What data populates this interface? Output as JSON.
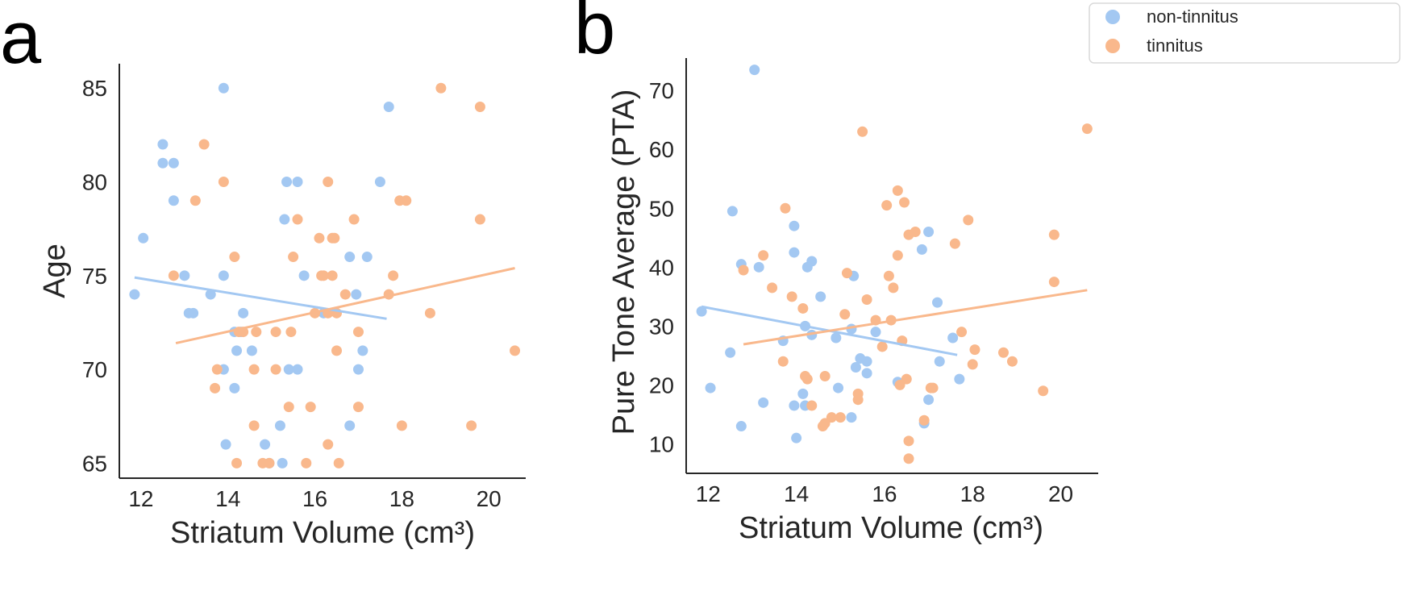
{
  "colors": {
    "non_tinnitus": "#a3c8f2",
    "tinnitus": "#f9b88c",
    "axis": "#262626"
  },
  "legend": {
    "items": [
      {
        "label": "non-tinnitus",
        "color": "#a3c8f2"
      },
      {
        "label": "tinnitus",
        "color": "#f9b88c"
      }
    ],
    "placement": "top-right"
  },
  "chart_data": [
    {
      "panel": "a",
      "type": "scatter",
      "xlabel": "Striatum Volume (cm³)",
      "ylabel": "Age",
      "xlim": [
        11.5,
        20.85
      ],
      "ylim": [
        64.2,
        86.3
      ],
      "xticks": [
        12,
        14,
        16,
        18,
        20
      ],
      "yticks": [
        65,
        70,
        75,
        80,
        85
      ],
      "series": [
        {
          "name": "non-tinnitus",
          "points": [
            [
              11.85,
              74
            ],
            [
              12.05,
              77
            ],
            [
              12.5,
              82
            ],
            [
              12.5,
              81
            ],
            [
              12.75,
              81
            ],
            [
              12.75,
              79
            ],
            [
              13.0,
              75
            ],
            [
              13.1,
              73
            ],
            [
              13.2,
              73
            ],
            [
              13.6,
              74
            ],
            [
              13.9,
              85
            ],
            [
              13.9,
              75
            ],
            [
              13.9,
              70
            ],
            [
              13.95,
              66
            ],
            [
              14.15,
              72
            ],
            [
              14.2,
              71
            ],
            [
              14.15,
              69
            ],
            [
              14.3,
              72
            ],
            [
              14.35,
              73
            ],
            [
              14.55,
              71
            ],
            [
              14.85,
              66
            ],
            [
              14.95,
              65
            ],
            [
              15.2,
              67
            ],
            [
              15.25,
              65
            ],
            [
              15.3,
              78
            ],
            [
              15.35,
              80
            ],
            [
              15.4,
              70
            ],
            [
              15.6,
              80
            ],
            [
              15.6,
              70
            ],
            [
              15.75,
              75
            ],
            [
              16.2,
              73
            ],
            [
              16.8,
              67
            ],
            [
              16.8,
              76
            ],
            [
              16.95,
              74
            ],
            [
              17.0,
              70
            ],
            [
              17.1,
              71
            ],
            [
              17.2,
              76
            ],
            [
              17.5,
              80
            ],
            [
              17.7,
              84
            ]
          ],
          "trend": [
            [
              11.85,
              74.9
            ],
            [
              17.65,
              72.7
            ]
          ]
        },
        {
          "name": "tinnitus",
          "points": [
            [
              12.75,
              75
            ],
            [
              13.25,
              79
            ],
            [
              13.45,
              82
            ],
            [
              13.7,
              69
            ],
            [
              13.75,
              70
            ],
            [
              13.9,
              80
            ],
            [
              14.15,
              76
            ],
            [
              14.2,
              65
            ],
            [
              14.25,
              72
            ],
            [
              14.35,
              72
            ],
            [
              14.6,
              70
            ],
            [
              14.6,
              67
            ],
            [
              14.65,
              72
            ],
            [
              14.8,
              65
            ],
            [
              14.95,
              65
            ],
            [
              15.1,
              70
            ],
            [
              15.1,
              72
            ],
            [
              15.4,
              68
            ],
            [
              15.45,
              72
            ],
            [
              15.5,
              76
            ],
            [
              15.6,
              78
            ],
            [
              15.8,
              65
            ],
            [
              15.9,
              68
            ],
            [
              16.0,
              73
            ],
            [
              16.1,
              77
            ],
            [
              16.15,
              75
            ],
            [
              16.2,
              75
            ],
            [
              16.3,
              73
            ],
            [
              16.3,
              66
            ],
            [
              16.3,
              80
            ],
            [
              16.4,
              75
            ],
            [
              16.4,
              77
            ],
            [
              16.45,
              77
            ],
            [
              16.5,
              73
            ],
            [
              16.5,
              71
            ],
            [
              16.55,
              65
            ],
            [
              16.7,
              74
            ],
            [
              16.9,
              78
            ],
            [
              17.0,
              72
            ],
            [
              17.0,
              68
            ],
            [
              17.7,
              74
            ],
            [
              17.8,
              75
            ],
            [
              17.95,
              79
            ],
            [
              18.0,
              67
            ],
            [
              18.1,
              79
            ],
            [
              18.65,
              73
            ],
            [
              18.9,
              85
            ],
            [
              19.6,
              67
            ],
            [
              19.8,
              84
            ],
            [
              19.8,
              78
            ],
            [
              20.6,
              71
            ]
          ],
          "trend": [
            [
              12.8,
              71.4
            ],
            [
              20.6,
              75.4
            ]
          ]
        }
      ]
    },
    {
      "panel": "b",
      "type": "scatter",
      "xlabel": "Striatum Volume (cm³)",
      "ylabel": "Pure Tone Average (PTA)",
      "xlim": [
        11.5,
        20.85
      ],
      "ylim": [
        5.0,
        75.5
      ],
      "xticks": [
        12,
        14,
        16,
        18,
        20
      ],
      "yticks": [
        10,
        20,
        30,
        40,
        50,
        60,
        70
      ],
      "series": [
        {
          "name": "non-tinnitus",
          "points": [
            [
              11.85,
              32.5
            ],
            [
              12.05,
              19.5
            ],
            [
              12.5,
              25.5
            ],
            [
              12.55,
              49.5
            ],
            [
              12.75,
              40.5
            ],
            [
              12.75,
              13
            ],
            [
              13.05,
              73.5
            ],
            [
              13.15,
              40
            ],
            [
              13.25,
              17
            ],
            [
              13.7,
              27.5
            ],
            [
              13.95,
              42.5
            ],
            [
              13.95,
              47
            ],
            [
              13.95,
              16.5
            ],
            [
              14.0,
              11
            ],
            [
              14.15,
              18.5
            ],
            [
              14.2,
              30
            ],
            [
              14.2,
              16.5
            ],
            [
              14.25,
              40
            ],
            [
              14.35,
              28.5
            ],
            [
              14.35,
              41
            ],
            [
              14.55,
              35
            ],
            [
              14.9,
              28
            ],
            [
              14.95,
              19.5
            ],
            [
              15.25,
              14.5
            ],
            [
              15.25,
              29.5
            ],
            [
              15.3,
              38.5
            ],
            [
              15.35,
              23
            ],
            [
              15.45,
              24.5
            ],
            [
              15.6,
              22
            ],
            [
              15.6,
              24
            ],
            [
              15.8,
              29
            ],
            [
              16.3,
              20.5
            ],
            [
              16.9,
              13.5
            ],
            [
              16.85,
              43
            ],
            [
              17.0,
              46
            ],
            [
              17.0,
              17.5
            ],
            [
              17.2,
              34
            ],
            [
              17.25,
              24
            ],
            [
              17.55,
              28
            ],
            [
              17.7,
              21
            ]
          ],
          "trend": [
            [
              11.85,
              33.3
            ],
            [
              17.65,
              25.1
            ]
          ]
        },
        {
          "name": "tinnitus",
          "points": [
            [
              12.8,
              39.5
            ],
            [
              13.25,
              42
            ],
            [
              13.45,
              36.5
            ],
            [
              13.7,
              24
            ],
            [
              13.75,
              50
            ],
            [
              13.9,
              35
            ],
            [
              14.15,
              33
            ],
            [
              14.2,
              21.5
            ],
            [
              14.25,
              21
            ],
            [
              14.35,
              16.5
            ],
            [
              14.6,
              13
            ],
            [
              14.65,
              13.5
            ],
            [
              14.65,
              21.5
            ],
            [
              14.8,
              14.5
            ],
            [
              15.0,
              14.5
            ],
            [
              15.1,
              32
            ],
            [
              15.15,
              39
            ],
            [
              15.4,
              17.5
            ],
            [
              15.4,
              18.5
            ],
            [
              15.5,
              63
            ],
            [
              15.6,
              34.5
            ],
            [
              15.8,
              31
            ],
            [
              15.95,
              26.5
            ],
            [
              16.05,
              50.5
            ],
            [
              16.1,
              38.5
            ],
            [
              16.15,
              31
            ],
            [
              16.2,
              36.5
            ],
            [
              16.3,
              53
            ],
            [
              16.3,
              42
            ],
            [
              16.35,
              20
            ],
            [
              16.4,
              27.5
            ],
            [
              16.45,
              51
            ],
            [
              16.5,
              21
            ],
            [
              16.55,
              45.5
            ],
            [
              16.55,
              10.5
            ],
            [
              16.55,
              7.5
            ],
            [
              16.7,
              46
            ],
            [
              16.9,
              14
            ],
            [
              17.05,
              19.5
            ],
            [
              17.1,
              19.5
            ],
            [
              17.6,
              44
            ],
            [
              17.75,
              29
            ],
            [
              17.9,
              48
            ],
            [
              18.0,
              23.5
            ],
            [
              18.05,
              26
            ],
            [
              18.7,
              25.5
            ],
            [
              18.9,
              24
            ],
            [
              19.6,
              19
            ],
            [
              19.85,
              37.5
            ],
            [
              19.85,
              45.5
            ],
            [
              20.6,
              63.5
            ]
          ],
          "trend": [
            [
              12.8,
              26.9
            ],
            [
              20.6,
              36.1
            ]
          ]
        }
      ]
    }
  ]
}
